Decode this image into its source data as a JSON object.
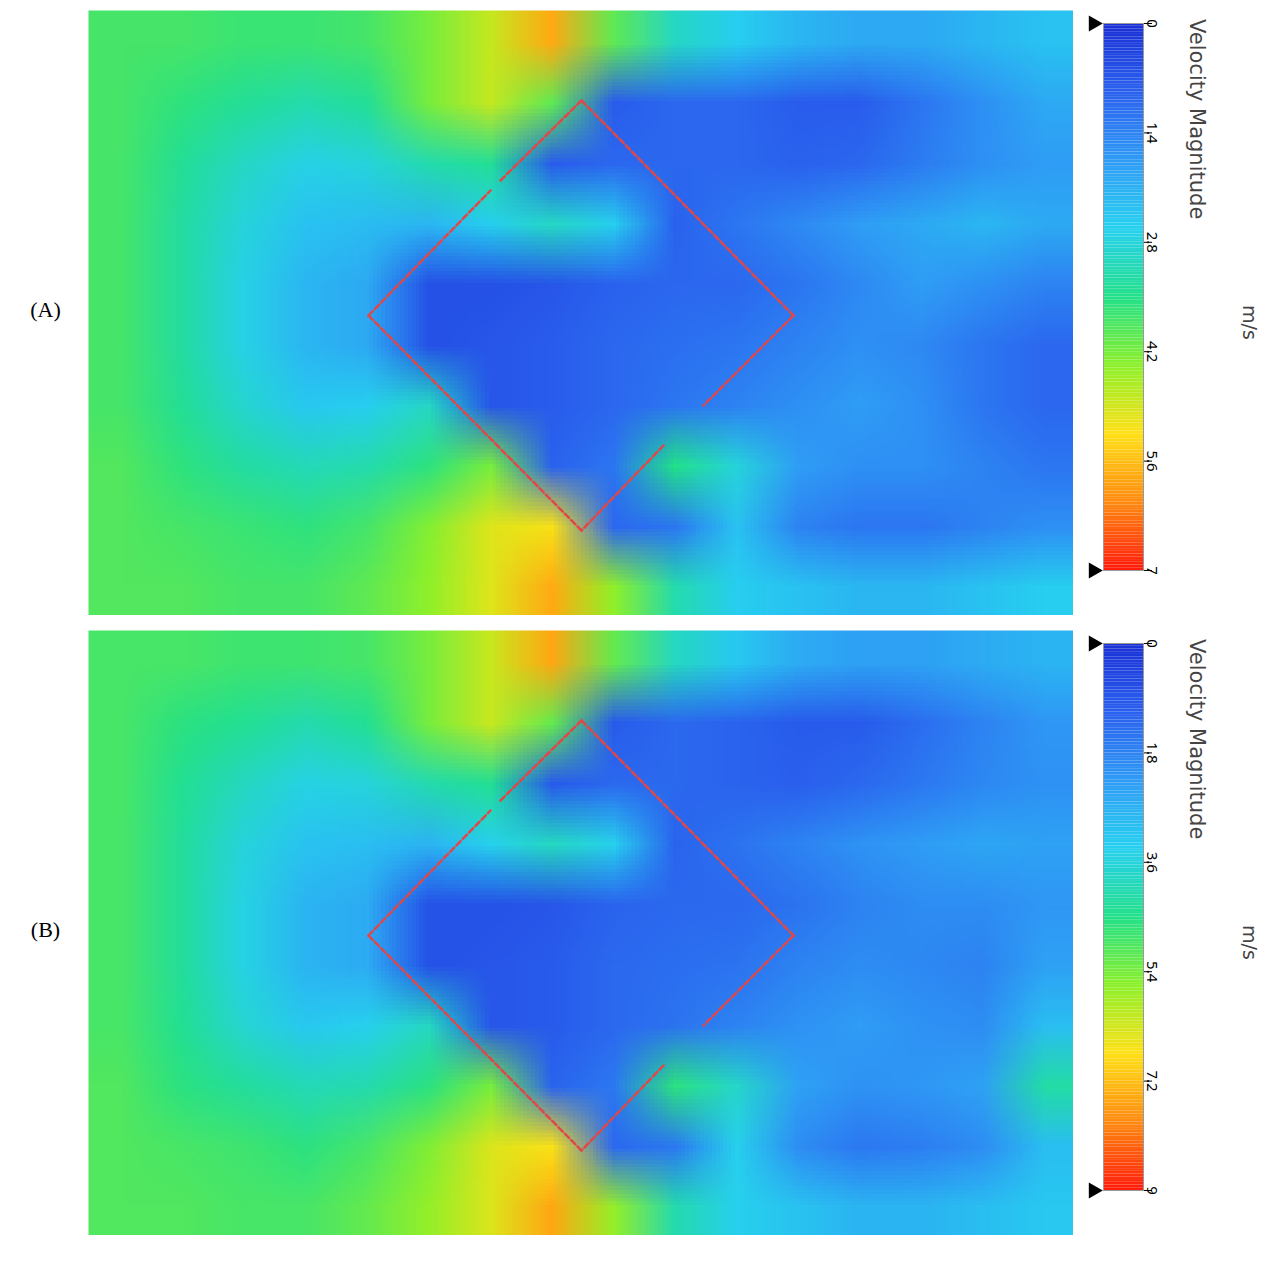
{
  "chart_data": [
    {
      "type": "heatmap",
      "label": "(A)",
      "tick_labels": false,
      "cells": [
        [
          3.8,
          3.8,
          3.7,
          3.7,
          3.8,
          4.2,
          4.8,
          5.8,
          4.0,
          3.0,
          2.6,
          2.2,
          2.0,
          2.0,
          2.2,
          2.4
        ],
        [
          3.8,
          3.6,
          3.4,
          3.2,
          3.4,
          4.2,
          4.8,
          4.0,
          0.8,
          1.0,
          1.0,
          0.8,
          0.8,
          1.2,
          1.6,
          2.0
        ],
        [
          3.8,
          3.4,
          3.0,
          2.7,
          2.8,
          3.2,
          3.4,
          0.8,
          1.0,
          1.0,
          1.0,
          0.9,
          1.0,
          1.3,
          1.6,
          1.8
        ],
        [
          3.8,
          3.3,
          2.8,
          2.4,
          2.3,
          2.2,
          2.6,
          3.0,
          2.6,
          0.9,
          1.2,
          1.5,
          1.8,
          2.0,
          2.2,
          2.0
        ],
        [
          3.8,
          3.3,
          2.7,
          2.2,
          2.0,
          0.6,
          0.6,
          0.7,
          0.9,
          1.0,
          1.0,
          1.2,
          1.5,
          1.8,
          1.6,
          1.4
        ],
        [
          3.8,
          3.3,
          2.7,
          2.2,
          2.0,
          0.6,
          0.7,
          0.8,
          1.0,
          1.1,
          1.2,
          1.4,
          1.6,
          1.5,
          1.2,
          1.0
        ],
        [
          3.8,
          3.4,
          2.9,
          2.5,
          2.6,
          3.0,
          0.7,
          0.8,
          1.0,
          1.2,
          1.4,
          1.6,
          1.8,
          1.6,
          1.2,
          1.0
        ],
        [
          3.9,
          3.6,
          3.3,
          3.1,
          3.2,
          3.6,
          4.2,
          0.9,
          1.2,
          3.5,
          2.8,
          1.8,
          1.6,
          1.6,
          1.4,
          1.2
        ],
        [
          3.9,
          3.8,
          3.7,
          3.6,
          3.8,
          4.3,
          5.0,
          5.2,
          1.0,
          1.2,
          2.4,
          1.4,
          1.2,
          1.2,
          1.4,
          1.6
        ],
        [
          3.9,
          3.9,
          3.8,
          3.8,
          4.0,
          4.4,
          5.0,
          5.8,
          4.4,
          3.2,
          2.6,
          2.4,
          2.2,
          2.2,
          2.4,
          2.6
        ]
      ],
      "colorbar": {
        "title": "Velocity Magnitude",
        "unit": "m/s",
        "range": [
          0,
          7
        ],
        "ticks": [
          0,
          1.4,
          2.8,
          4.2,
          5.6,
          7
        ],
        "colors": [
          "#1a2fd6",
          "#2a60ee",
          "#2f9af5",
          "#27d0ef",
          "#22e08a",
          "#8cf02a",
          "#ffe015",
          "#ff8a10",
          "#ff1a0a"
        ]
      }
    },
    {
      "type": "heatmap",
      "label": "(B)",
      "tick_labels": false,
      "cells": [
        [
          4.9,
          4.9,
          4.8,
          4.8,
          4.9,
          5.4,
          6.2,
          7.5,
          5.2,
          3.9,
          3.2,
          2.6,
          2.4,
          2.4,
          2.6,
          2.8
        ],
        [
          4.9,
          4.6,
          4.4,
          4.1,
          4.4,
          5.4,
          6.2,
          5.2,
          1.0,
          1.3,
          1.2,
          1.0,
          1.0,
          1.4,
          1.8,
          2.2
        ],
        [
          4.9,
          4.4,
          3.9,
          3.5,
          3.6,
          4.1,
          4.4,
          1.0,
          1.3,
          1.3,
          1.2,
          1.1,
          1.3,
          1.6,
          1.9,
          2.1
        ],
        [
          4.9,
          4.3,
          3.6,
          3.1,
          3.0,
          2.8,
          3.4,
          3.9,
          3.4,
          1.2,
          1.5,
          1.8,
          2.1,
          2.3,
          2.5,
          2.4
        ],
        [
          4.9,
          4.3,
          3.5,
          2.8,
          2.6,
          0.8,
          0.8,
          0.9,
          1.2,
          1.3,
          1.3,
          1.5,
          1.8,
          2.0,
          2.0,
          2.2
        ],
        [
          4.9,
          4.3,
          3.5,
          2.8,
          2.6,
          0.8,
          0.9,
          1.0,
          1.3,
          1.4,
          1.5,
          1.8,
          2.0,
          1.9,
          1.8,
          2.4
        ],
        [
          4.9,
          4.4,
          3.7,
          3.2,
          3.4,
          3.9,
          0.9,
          1.0,
          1.3,
          1.5,
          1.8,
          2.1,
          2.3,
          2.1,
          2.0,
          3.0
        ],
        [
          5.0,
          4.6,
          4.3,
          4.0,
          4.1,
          4.6,
          5.4,
          1.2,
          1.6,
          4.6,
          3.8,
          2.4,
          2.1,
          2.2,
          2.4,
          4.2
        ],
        [
          5.0,
          4.9,
          4.8,
          4.6,
          4.9,
          5.5,
          6.4,
          6.7,
          1.3,
          1.6,
          3.4,
          2.0,
          1.6,
          1.7,
          2.0,
          3.0
        ],
        [
          5.0,
          5.0,
          4.9,
          4.9,
          5.2,
          5.7,
          6.4,
          7.5,
          5.7,
          4.1,
          3.4,
          3.1,
          2.8,
          2.8,
          3.0,
          3.2
        ]
      ],
      "colorbar": {
        "title": "Velocity Magnitude",
        "unit": "m/s",
        "range": [
          0,
          9
        ],
        "ticks": [
          0,
          1.8,
          3.6,
          5.4,
          7.2,
          9
        ],
        "colors": [
          "#1a2fd6",
          "#2a60ee",
          "#2f9af5",
          "#27d0ef",
          "#22e08a",
          "#8cf02a",
          "#ffe015",
          "#ff8a10",
          "#ff1a0a"
        ]
      }
    }
  ]
}
